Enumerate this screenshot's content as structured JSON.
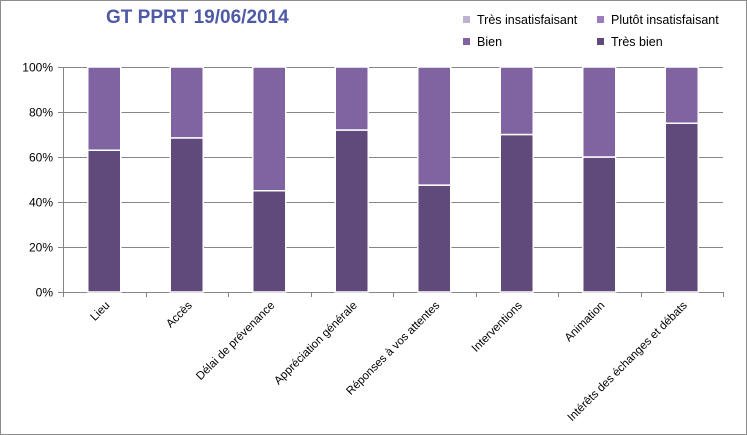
{
  "chart_data": {
    "type": "bar",
    "stacked": true,
    "title": "GT PPRT 19/06/2014",
    "categories": [
      "Lieu",
      "Accès",
      "Délai de prévenance",
      "Appréciation générale",
      "Réponses à vos attentes",
      "Interventions",
      "Animation",
      "Intérêts des échanges et débats"
    ],
    "series": [
      {
        "name": "Très bien",
        "color": "#604a7b",
        "values": [
          0.63,
          0.685,
          0.45,
          0.72,
          0.475,
          0.7,
          0.6,
          0.75
        ]
      },
      {
        "name": "Bien",
        "color": "#8064a2",
        "values": [
          0.37,
          0.315,
          0.55,
          0.28,
          0.525,
          0.3,
          0.4,
          0.25
        ]
      },
      {
        "name": "Plutôt insatisfaisant",
        "color": "#9a7dbc",
        "values": [
          0,
          0,
          0,
          0,
          0,
          0,
          0,
          0
        ]
      },
      {
        "name": "Très insatisfaisant",
        "color": "#bfb1d1",
        "values": [
          0,
          0,
          0,
          0,
          0,
          0,
          0,
          0
        ]
      }
    ],
    "ylim": [
      0,
      1
    ],
    "yticks": [
      "0%",
      "20%",
      "40%",
      "60%",
      "80%",
      "100%"
    ],
    "grid": true,
    "legend_position": "top-right",
    "legend_order": [
      "Très insatisfaisant",
      "Plutôt insatisfaisant",
      "Bien",
      "Très bien"
    ]
  }
}
